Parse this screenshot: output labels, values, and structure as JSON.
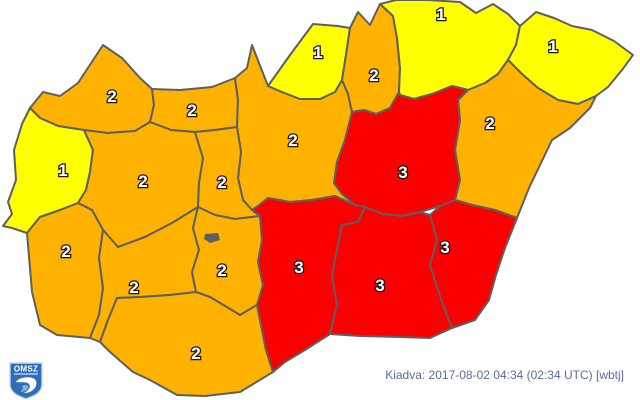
{
  "map": {
    "name": "hungary-county-warning-map",
    "levels": {
      "1": "#FFFF00",
      "2": "#FFB300",
      "3": "#FA0000"
    },
    "border_color": "#5f5f5f",
    "counties": [
      {
        "id": "gyor-moson-sopron",
        "level": "2"
      },
      {
        "id": "komarom-esztergom",
        "level": "2"
      },
      {
        "id": "pest",
        "level": "2"
      },
      {
        "id": "nograd",
        "level": "1"
      },
      {
        "id": "heves",
        "level": "2"
      },
      {
        "id": "borsod-abauj-zemplen",
        "level": "1"
      },
      {
        "id": "szabolcs-szatmar-bereg",
        "level": "1"
      },
      {
        "id": "hajdu-bihar",
        "level": "2"
      },
      {
        "id": "jasz-nagykun-szolnok",
        "level": "3"
      },
      {
        "id": "vas",
        "level": "1"
      },
      {
        "id": "veszprem",
        "level": "2"
      },
      {
        "id": "fejer",
        "level": "2"
      },
      {
        "id": "zala",
        "level": "2"
      },
      {
        "id": "somogy",
        "level": "2"
      },
      {
        "id": "tolna",
        "level": "2"
      },
      {
        "id": "baranya",
        "level": "2"
      },
      {
        "id": "bacs-kiskun",
        "level": "3"
      },
      {
        "id": "csongrad",
        "level": "3"
      },
      {
        "id": "bekes",
        "level": "3"
      }
    ]
  },
  "footer": {
    "issued": "Kiadva: 2017-08-02 04:34 (02:34 UTC) [wbtj]"
  },
  "logo": {
    "text": "OMSZ",
    "shield_color": "#2f6eb6"
  }
}
